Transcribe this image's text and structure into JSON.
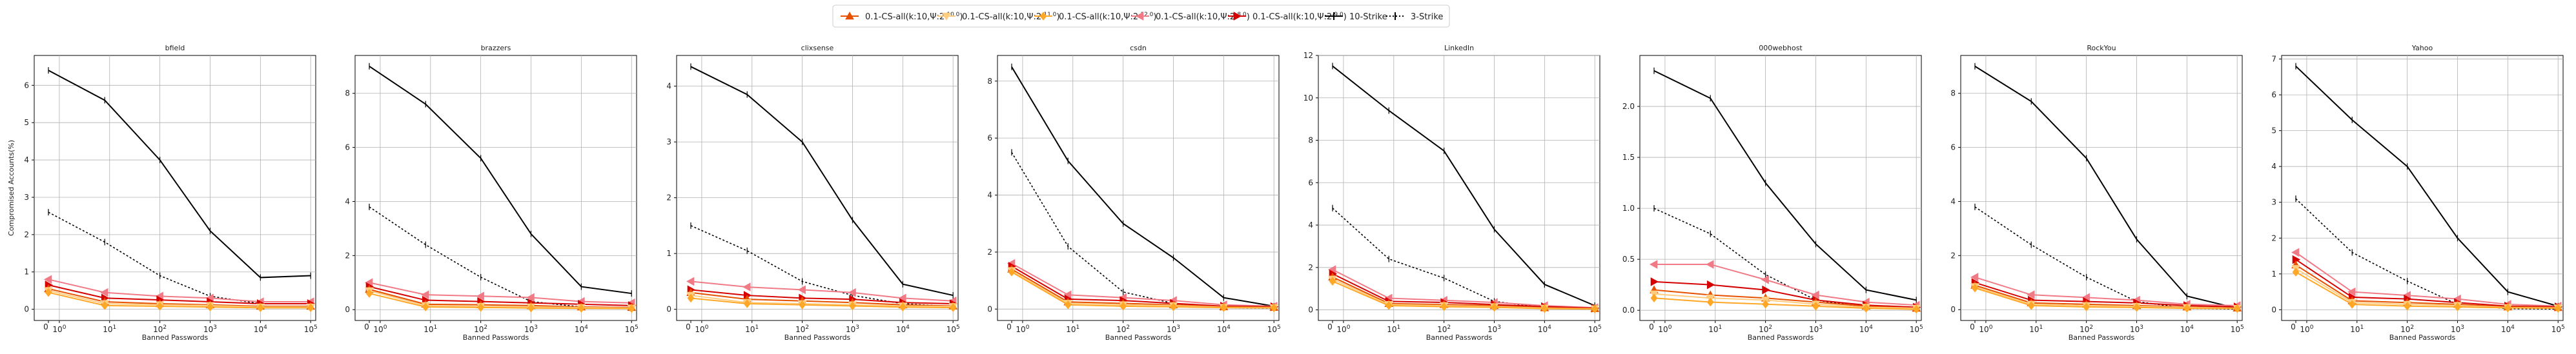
{
  "legend": {
    "entries": [
      {
        "label": "0.1-CS-all(k:10,Ψ:2^{-10.0})",
        "color": "#e65100",
        "marker": "triangle-up",
        "dash": "solid"
      },
      {
        "label": "0.1-CS-all(k:10,Ψ:2^{-11.0})",
        "color": "#ffcc80",
        "marker": "triangle-down",
        "dash": "solid"
      },
      {
        "label": "0.1-CS-all(k:10,Ψ:2^{-12.0})",
        "color": "#ffa726",
        "marker": "diamond",
        "dash": "solid"
      },
      {
        "label": "0.1-CS-all(k:10,Ψ:2^{-8.0})",
        "color": "#f07a85",
        "marker": "triangle-left",
        "dash": "solid"
      },
      {
        "label": "0.1-CS-all(k:10,Ψ:2^{-9.0})",
        "color": "#d50000",
        "marker": "triangle-right",
        "dash": "solid"
      },
      {
        "label": "10-Strike",
        "color": "#000000",
        "marker": "none",
        "dash": "solid"
      },
      {
        "label": "3-Strike",
        "color": "#000000",
        "marker": "none",
        "dash": "dotted"
      }
    ]
  },
  "chart_data": [
    {
      "type": "line",
      "title": "bfield",
      "xlabel": "Banned Passwords",
      "ylabel": "Compromised Accounts(%)",
      "x": [
        0,
        8,
        100,
        1000,
        10000,
        100000
      ],
      "ylim": [
        -0.3,
        6.8
      ],
      "yticks": [
        0,
        1,
        2,
        3,
        4,
        5,
        6
      ],
      "series": [
        {
          "name": "10-Strike",
          "values": [
            6.4,
            5.6,
            4.0,
            2.1,
            0.85,
            0.9
          ]
        },
        {
          "name": "3-Strike",
          "values": [
            2.6,
            1.8,
            0.9,
            0.35,
            0.15,
            0.15
          ]
        },
        {
          "name": "0.1-CS-all(k:10,Ψ:2^{-8.0})",
          "values": [
            0.8,
            0.45,
            0.35,
            0.3,
            0.2,
            0.2
          ]
        },
        {
          "name": "0.1-CS-all(k:10,Ψ:2^{-9.0})",
          "values": [
            0.65,
            0.3,
            0.25,
            0.2,
            0.15,
            0.15
          ]
        },
        {
          "name": "0.1-CS-all(k:10,Ψ:2^{-10.0})",
          "values": [
            0.55,
            0.2,
            0.15,
            0.12,
            0.08,
            0.08
          ]
        },
        {
          "name": "0.1-CS-all(k:10,Ψ:2^{-11.0})",
          "values": [
            0.5,
            0.15,
            0.12,
            0.1,
            0.06,
            0.06
          ]
        },
        {
          "name": "0.1-CS-all(k:10,Ψ:2^{-12.0})",
          "values": [
            0.45,
            0.1,
            0.08,
            0.06,
            0.04,
            0.04
          ]
        }
      ]
    },
    {
      "type": "line",
      "title": "brazzers",
      "xlabel": "Banned Passwords",
      "ylabel": "",
      "x": [
        0,
        8,
        100,
        1000,
        10000,
        100000
      ],
      "ylim": [
        -0.4,
        9.4
      ],
      "yticks": [
        0,
        2,
        4,
        6,
        8
      ],
      "series": [
        {
          "name": "10-Strike",
          "values": [
            9.0,
            7.6,
            5.6,
            2.8,
            0.85,
            0.6
          ]
        },
        {
          "name": "3-Strike",
          "values": [
            3.8,
            2.4,
            1.2,
            0.3,
            0.1,
            0.05
          ]
        },
        {
          "name": "0.1-CS-all(k:10,Ψ:2^{-8.0})",
          "values": [
            1.0,
            0.55,
            0.5,
            0.45,
            0.3,
            0.25
          ]
        },
        {
          "name": "0.1-CS-all(k:10,Ψ:2^{-9.0})",
          "values": [
            0.85,
            0.35,
            0.3,
            0.25,
            0.2,
            0.15
          ]
        },
        {
          "name": "0.1-CS-all(k:10,Ψ:2^{-10.0})",
          "values": [
            0.75,
            0.2,
            0.18,
            0.15,
            0.1,
            0.08
          ]
        },
        {
          "name": "0.1-CS-all(k:10,Ψ:2^{-11.0})",
          "values": [
            0.7,
            0.15,
            0.12,
            0.1,
            0.08,
            0.06
          ]
        },
        {
          "name": "0.1-CS-all(k:10,Ψ:2^{-12.0})",
          "values": [
            0.6,
            0.1,
            0.08,
            0.06,
            0.05,
            0.04
          ]
        }
      ]
    },
    {
      "type": "line",
      "title": "clixsense",
      "xlabel": "Banned Passwords",
      "ylabel": "",
      "x": [
        0,
        8,
        100,
        1000,
        10000,
        100000
      ],
      "ylim": [
        -0.2,
        4.55
      ],
      "yticks": [
        0,
        1,
        2,
        3,
        4
      ],
      "series": [
        {
          "name": "10-Strike",
          "values": [
            4.35,
            3.85,
            3.0,
            1.6,
            0.45,
            0.25
          ]
        },
        {
          "name": "3-Strike",
          "values": [
            1.5,
            1.05,
            0.5,
            0.25,
            0.1,
            0.05
          ]
        },
        {
          "name": "0.1-CS-all(k:10,Ψ:2^{-8.0})",
          "values": [
            0.5,
            0.4,
            0.35,
            0.3,
            0.2,
            0.15
          ]
        },
        {
          "name": "0.1-CS-all(k:10,Ψ:2^{-9.0})",
          "values": [
            0.35,
            0.25,
            0.2,
            0.18,
            0.12,
            0.1
          ]
        },
        {
          "name": "0.1-CS-all(k:10,Ψ:2^{-10.0})",
          "values": [
            0.3,
            0.18,
            0.15,
            0.12,
            0.08,
            0.06
          ]
        },
        {
          "name": "0.1-CS-all(k:10,Ψ:2^{-11.0})",
          "values": [
            0.25,
            0.12,
            0.1,
            0.08,
            0.06,
            0.05
          ]
        },
        {
          "name": "0.1-CS-all(k:10,Ψ:2^{-12.0})",
          "values": [
            0.2,
            0.1,
            0.08,
            0.06,
            0.04,
            0.03
          ]
        }
      ]
    },
    {
      "type": "line",
      "title": "csdn",
      "xlabel": "Banned Passwords",
      "ylabel": "",
      "x": [
        0,
        8,
        100,
        1000,
        10000,
        100000
      ],
      "ylim": [
        -0.4,
        8.9
      ],
      "yticks": [
        0,
        2,
        4,
        6,
        8
      ],
      "series": [
        {
          "name": "10-Strike",
          "values": [
            8.5,
            5.2,
            3.0,
            1.8,
            0.4,
            0.1
          ]
        },
        {
          "name": "3-Strike",
          "values": [
            5.5,
            2.2,
            0.6,
            0.2,
            0.05,
            0.03
          ]
        },
        {
          "name": "0.1-CS-all(k:10,Ψ:2^{-8.0})",
          "values": [
            1.6,
            0.5,
            0.4,
            0.3,
            0.15,
            0.1
          ]
        },
        {
          "name": "0.1-CS-all(k:10,Ψ:2^{-9.0})",
          "values": [
            1.5,
            0.35,
            0.3,
            0.2,
            0.1,
            0.08
          ]
        },
        {
          "name": "0.1-CS-all(k:10,Ψ:2^{-10.0})",
          "values": [
            1.4,
            0.25,
            0.2,
            0.15,
            0.08,
            0.06
          ]
        },
        {
          "name": "0.1-CS-all(k:10,Ψ:2^{-11.0})",
          "values": [
            1.35,
            0.2,
            0.15,
            0.12,
            0.06,
            0.05
          ]
        },
        {
          "name": "0.1-CS-all(k:10,Ψ:2^{-12.0})",
          "values": [
            1.3,
            0.15,
            0.1,
            0.08,
            0.05,
            0.04
          ]
        }
      ]
    },
    {
      "type": "line",
      "title": "LinkedIn",
      "xlabel": "Banned Passwords",
      "ylabel": "",
      "x": [
        0,
        8,
        100,
        1000,
        10000,
        100000
      ],
      "ylim": [
        -0.5,
        12.0
      ],
      "yticks": [
        0,
        2,
        4,
        6,
        8,
        10,
        12
      ],
      "series": [
        {
          "name": "10-Strike",
          "values": [
            11.5,
            9.4,
            7.5,
            3.8,
            1.2,
            0.2
          ]
        },
        {
          "name": "3-Strike",
          "values": [
            4.8,
            2.4,
            1.5,
            0.4,
            0.1,
            0.05
          ]
        },
        {
          "name": "0.1-CS-all(k:10,Ψ:2^{-8.0})",
          "values": [
            1.9,
            0.55,
            0.45,
            0.35,
            0.2,
            0.1
          ]
        },
        {
          "name": "0.1-CS-all(k:10,Ψ:2^{-9.0})",
          "values": [
            1.7,
            0.4,
            0.35,
            0.25,
            0.15,
            0.08
          ]
        },
        {
          "name": "0.1-CS-all(k:10,Ψ:2^{-10.0})",
          "values": [
            1.55,
            0.3,
            0.25,
            0.2,
            0.1,
            0.06
          ]
        },
        {
          "name": "0.1-CS-all(k:10,Ψ:2^{-11.0})",
          "values": [
            1.45,
            0.25,
            0.2,
            0.15,
            0.08,
            0.05
          ]
        },
        {
          "name": "0.1-CS-all(k:10,Ψ:2^{-12.0})",
          "values": [
            1.35,
            0.2,
            0.15,
            0.12,
            0.06,
            0.04
          ]
        }
      ]
    },
    {
      "type": "line",
      "title": "000webhost",
      "xlabel": "Banned Passwords",
      "ylabel": "",
      "x": [
        0,
        8,
        100,
        1000,
        10000,
        100000
      ],
      "ylim": [
        -0.1,
        2.5
      ],
      "yticks": [
        0.0,
        0.5,
        1.0,
        1.5,
        2.0
      ],
      "series": [
        {
          "name": "10-Strike",
          "values": [
            2.35,
            2.08,
            1.25,
            0.65,
            0.2,
            0.1
          ]
        },
        {
          "name": "3-Strike",
          "values": [
            1.0,
            0.75,
            0.35,
            0.1,
            0.03,
            0.02
          ]
        },
        {
          "name": "0.1-CS-all(k:10,Ψ:2^{-8.0})",
          "values": [
            0.45,
            0.45,
            0.3,
            0.15,
            0.08,
            0.05
          ]
        },
        {
          "name": "0.1-CS-all(k:10,Ψ:2^{-9.0})",
          "values": [
            0.28,
            0.25,
            0.2,
            0.1,
            0.05,
            0.03
          ]
        },
        {
          "name": "0.1-CS-all(k:10,Ψ:2^{-10.0})",
          "values": [
            0.2,
            0.15,
            0.12,
            0.08,
            0.04,
            0.02
          ]
        },
        {
          "name": "0.1-CS-all(k:10,Ψ:2^{-11.0})",
          "values": [
            0.16,
            0.12,
            0.1,
            0.06,
            0.03,
            0.02
          ]
        },
        {
          "name": "0.1-CS-all(k:10,Ψ:2^{-12.0})",
          "values": [
            0.12,
            0.08,
            0.06,
            0.04,
            0.02,
            0.01
          ]
        }
      ]
    },
    {
      "type": "line",
      "title": "RockYou",
      "xlabel": "Banned Passwords",
      "ylabel": "",
      "x": [
        0,
        8,
        100,
        1000,
        10000,
        100000
      ],
      "ylim": [
        -0.4,
        9.4
      ],
      "yticks": [
        0,
        2,
        4,
        6,
        8
      ],
      "series": [
        {
          "name": "10-Strike",
          "values": [
            9.0,
            7.7,
            5.6,
            2.6,
            0.5,
            0.05
          ]
        },
        {
          "name": "3-Strike",
          "values": [
            3.8,
            2.4,
            1.2,
            0.3,
            0.05,
            0.02
          ]
        },
        {
          "name": "0.1-CS-all(k:10,Ψ:2^{-8.0})",
          "values": [
            1.2,
            0.55,
            0.45,
            0.35,
            0.2,
            0.15
          ]
        },
        {
          "name": "0.1-CS-all(k:10,Ψ:2^{-9.0})",
          "values": [
            1.0,
            0.35,
            0.3,
            0.25,
            0.15,
            0.1
          ]
        },
        {
          "name": "0.1-CS-all(k:10,Ψ:2^{-10.0})",
          "values": [
            0.9,
            0.25,
            0.2,
            0.15,
            0.1,
            0.06
          ]
        },
        {
          "name": "0.1-CS-all(k:10,Ψ:2^{-11.0})",
          "values": [
            0.85,
            0.2,
            0.15,
            0.12,
            0.08,
            0.05
          ]
        },
        {
          "name": "0.1-CS-all(k:10,Ψ:2^{-12.0})",
          "values": [
            0.8,
            0.15,
            0.1,
            0.08,
            0.05,
            0.04
          ]
        }
      ]
    },
    {
      "type": "line",
      "title": "Yahoo",
      "xlabel": "Banned Passwords",
      "ylabel": "",
      "x": [
        0,
        8,
        100,
        1000,
        10000,
        100000
      ],
      "ylim": [
        -0.3,
        7.1
      ],
      "yticks": [
        0,
        1,
        2,
        3,
        4,
        5,
        6,
        7
      ],
      "series": [
        {
          "name": "10-Strike",
          "values": [
            6.8,
            5.3,
            4.0,
            2.0,
            0.5,
            0.1
          ]
        },
        {
          "name": "3-Strike",
          "values": [
            3.1,
            1.6,
            0.8,
            0.15,
            0.03,
            0.02
          ]
        },
        {
          "name": "0.1-CS-all(k:10,Ψ:2^{-8.0})",
          "values": [
            1.6,
            0.5,
            0.4,
            0.3,
            0.15,
            0.1
          ]
        },
        {
          "name": "0.1-CS-all(k:10,Ψ:2^{-9.0})",
          "values": [
            1.4,
            0.35,
            0.3,
            0.2,
            0.1,
            0.08
          ]
        },
        {
          "name": "0.1-CS-all(k:10,Ψ:2^{-10.0})",
          "values": [
            1.25,
            0.25,
            0.2,
            0.15,
            0.08,
            0.06
          ]
        },
        {
          "name": "0.1-CS-all(k:10,Ψ:2^{-11.0})",
          "values": [
            1.15,
            0.2,
            0.15,
            0.12,
            0.06,
            0.05
          ]
        },
        {
          "name": "0.1-CS-all(k:10,Ψ:2^{-12.0})",
          "values": [
            1.05,
            0.15,
            0.1,
            0.08,
            0.05,
            0.04
          ]
        }
      ]
    }
  ]
}
